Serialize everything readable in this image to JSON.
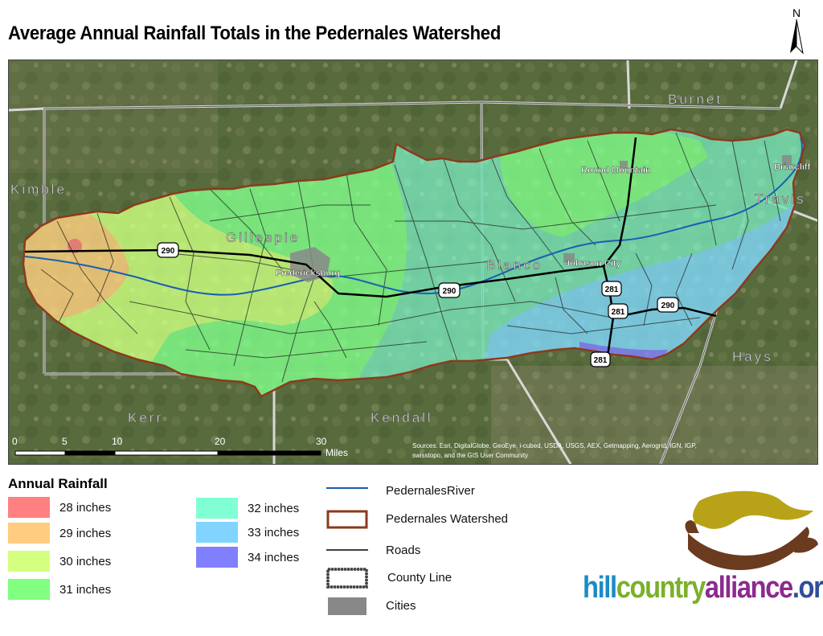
{
  "title": "Average Annual Rainfall Totals in the Pedernales Watershed",
  "north_label": "N",
  "map": {
    "counties": [
      "Burnet",
      "Kimble",
      "Gillespie",
      "Blanco",
      "Travis",
      "Hays",
      "Kerr",
      "Kendall"
    ],
    "cities": [
      "Fredericksburg",
      "Johnson City",
      "Round Mountain",
      "Briarcliff"
    ],
    "highway_shields": [
      "290",
      "290",
      "281",
      "281",
      "290",
      "281"
    ],
    "scale_ticks": [
      "0",
      "5",
      "10",
      "20",
      "30"
    ],
    "scale_unit": "Miles",
    "attribution_line1": "Sources: Esri, DigitalGlobe, GeoEye, i-cubed, USDA, USGS, AEX, Getmapping, Aerogrid, IGN, IGP,",
    "attribution_line2": "swisstopo, and the GIS User Community"
  },
  "legend": {
    "title": "Annual Rainfall",
    "items": [
      {
        "label": "28 inches",
        "color": "#ff8080"
      },
      {
        "label": "29 inches",
        "color": "#ffcc80"
      },
      {
        "label": "30 inches",
        "color": "#d4ff80"
      },
      {
        "label": "31 inches",
        "color": "#80ff80"
      },
      {
        "label": "32 inches",
        "color": "#80ffd4"
      },
      {
        "label": "33 inches",
        "color": "#80d4ff"
      },
      {
        "label": "34 inches",
        "color": "#8080ff"
      }
    ],
    "symbols": {
      "river": "PedernalesRiver",
      "watershed": "Pedernales Watershed",
      "roads": "Roads",
      "county_line": "County Line",
      "cities": "Cities"
    }
  },
  "logo": {
    "text1": "hill",
    "text2": "country",
    "text3": "alliance",
    "text4": ".org",
    "icon": "hands-sun-icon"
  }
}
